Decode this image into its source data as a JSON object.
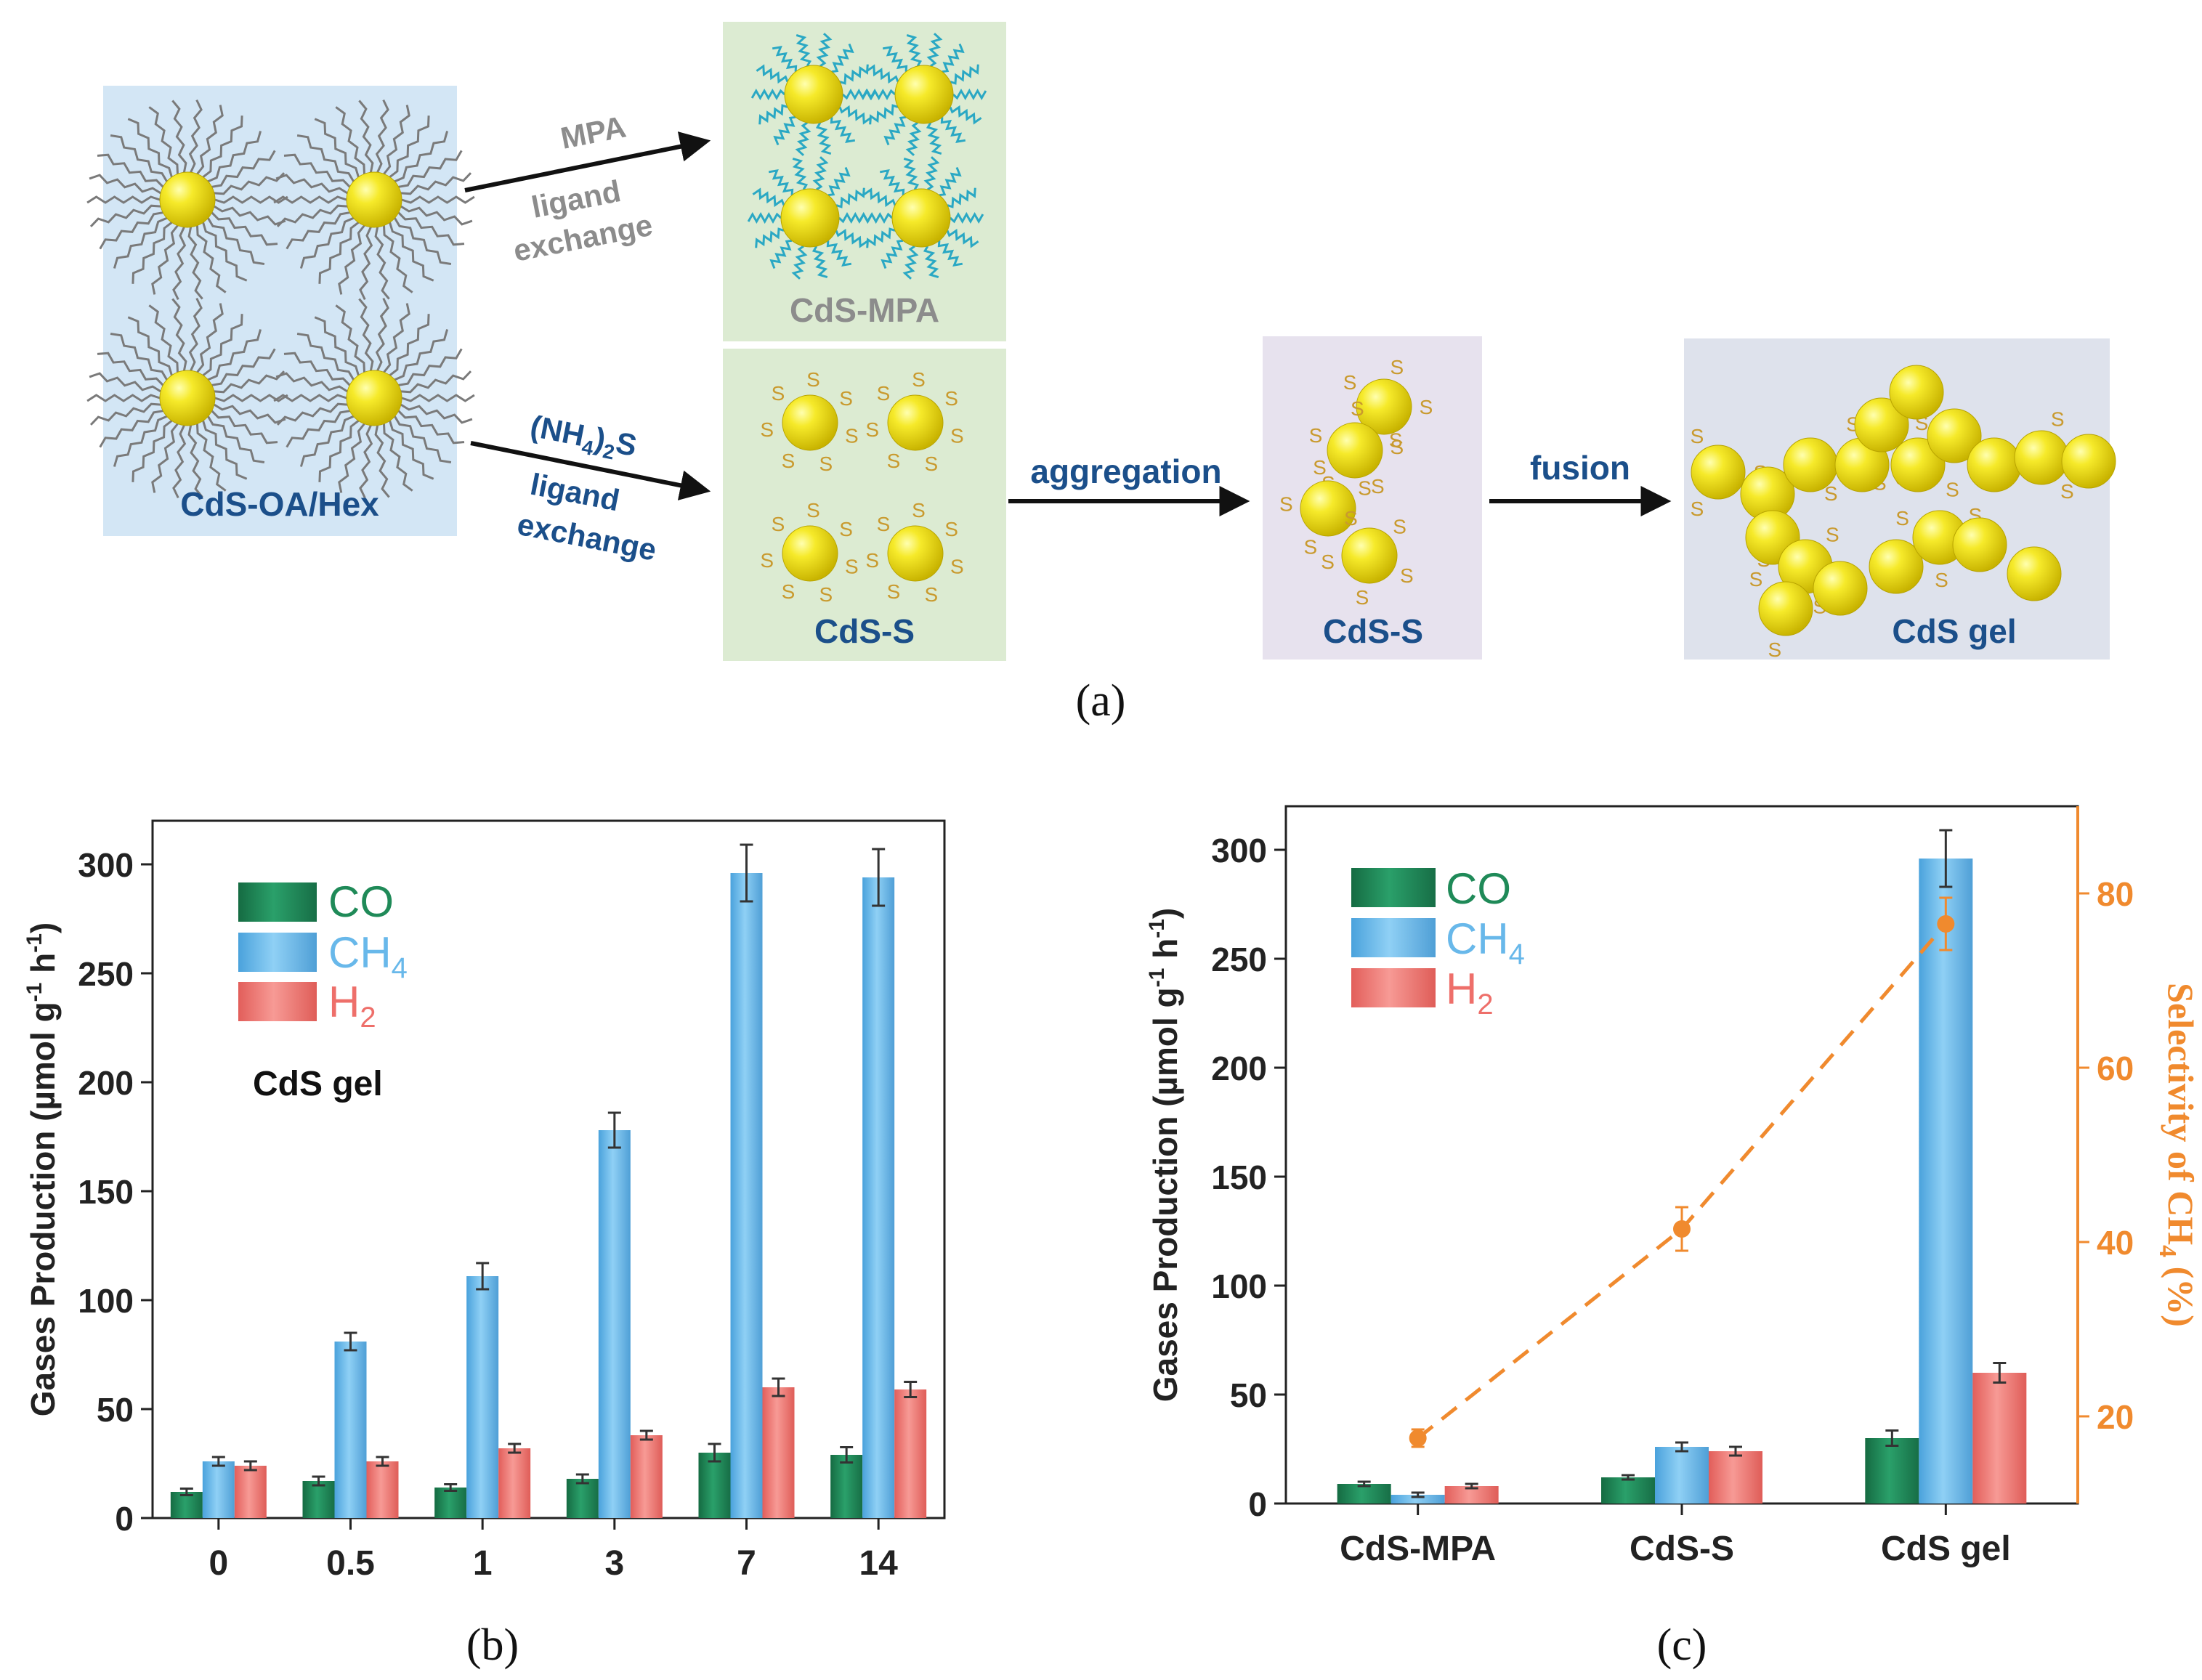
{
  "colors": {
    "co": "#1f8a58",
    "ch4": "#68b8ea",
    "h2": "#ee6f6a",
    "selectivity": "#f08a2e",
    "dark_blue": "#1b4f8a",
    "grey_label": "#8c8c8c",
    "ligand": "#7a7a7a",
    "mpa_ligand": "#2aa8c4",
    "sulfur": "#c99a2e",
    "np_yellow": "#f2e21c",
    "box_blue": "#d3e6f5",
    "box_green": "#dcebd2",
    "box_purple": "#e7e2ee",
    "box_grey": "#dee2ec"
  },
  "panel_a": {
    "label_text": "(a)",
    "box_oahex": "CdS-OA/Hex",
    "box_mpa": "CdS-MPA",
    "box_s1": "CdS-S",
    "box_s2": "CdS-S",
    "box_gel": "CdS gel",
    "arrow_mpa_top": "MPA",
    "arrow_mpa_mid": "ligand",
    "arrow_mpa_bot": "exchange",
    "arrow_nh4_main": "(NH",
    "arrow_nh4_sub1": "4",
    "arrow_nh4_close": ")",
    "arrow_nh4_sub2": "2",
    "arrow_nh4_end": "S",
    "arrow_nh4_mid": "ligand",
    "arrow_nh4_bot": "exchange",
    "arrow_aggregation": "aggregation",
    "arrow_fusion": "fusion",
    "sulfur_label": "S"
  },
  "chart_data": [
    {
      "type": "bar",
      "panel_label": "(b)",
      "annotation": "CdS gel",
      "ylabel_main": "Gases Production (µmol g",
      "ylabel_sup1": "-1",
      "ylabel_mid": " h",
      "ylabel_sup2": "-1",
      "ylabel_end": ")",
      "xlabel": "",
      "ylim": [
        0,
        320
      ],
      "yticks": [
        0,
        50,
        100,
        150,
        200,
        250,
        300
      ],
      "categories": [
        "0",
        "0.5",
        "1",
        "3",
        "7",
        "14"
      ],
      "legend": {
        "position": "top-left",
        "co": "CO",
        "ch4": "CH",
        "ch4_sub": "4",
        "h2": "H",
        "h2_sub": "2"
      },
      "series": [
        {
          "name": "CO",
          "values": [
            12,
            17,
            14,
            18,
            30,
            29
          ],
          "errors": [
            1.5,
            2,
            1.5,
            2,
            4,
            3.5
          ]
        },
        {
          "name": "CH4",
          "values": [
            26,
            81,
            111,
            178,
            296,
            294
          ],
          "errors": [
            2,
            4,
            6,
            8,
            13,
            13
          ]
        },
        {
          "name": "H2",
          "values": [
            24,
            26,
            32,
            38,
            60,
            59
          ],
          "errors": [
            2,
            2,
            2,
            2,
            4,
            3.5
          ]
        }
      ]
    },
    {
      "type": "bar",
      "panel_label": "(c)",
      "ylabel_main": "Gases Production (µmol g",
      "ylabel_sup1": "-1",
      "ylabel_mid": " h",
      "ylabel_sup2": "-1",
      "ylabel_end": ")",
      "y2label_main": "Selectivity of CH",
      "y2label_sub": "4",
      "y2label_end": " (%)",
      "ylim": [
        0,
        320
      ],
      "yticks": [
        0,
        50,
        100,
        150,
        200,
        250,
        300
      ],
      "y2lim": [
        10,
        90
      ],
      "y2ticks": [
        20,
        40,
        60,
        80
      ],
      "categories": [
        "CdS-MPA",
        "CdS-S",
        "CdS gel"
      ],
      "legend": {
        "position": "top-left",
        "co": "CO",
        "ch4": "CH",
        "ch4_sub": "4",
        "h2": "H",
        "h2_sub": "2"
      },
      "series": [
        {
          "name": "CO",
          "values": [
            9,
            12,
            30
          ],
          "errors": [
            1,
            1,
            3.5
          ]
        },
        {
          "name": "CH4",
          "values": [
            4,
            26,
            296
          ],
          "errors": [
            1,
            2,
            13
          ]
        },
        {
          "name": "H2",
          "values": [
            8,
            24,
            60
          ],
          "errors": [
            1,
            2,
            4.5
          ]
        }
      ],
      "selectivity": {
        "name": "Selectivity of CH4",
        "values": [
          17.5,
          41.5,
          76.5
        ],
        "errors": [
          1,
          2.5,
          3
        ]
      }
    }
  ]
}
